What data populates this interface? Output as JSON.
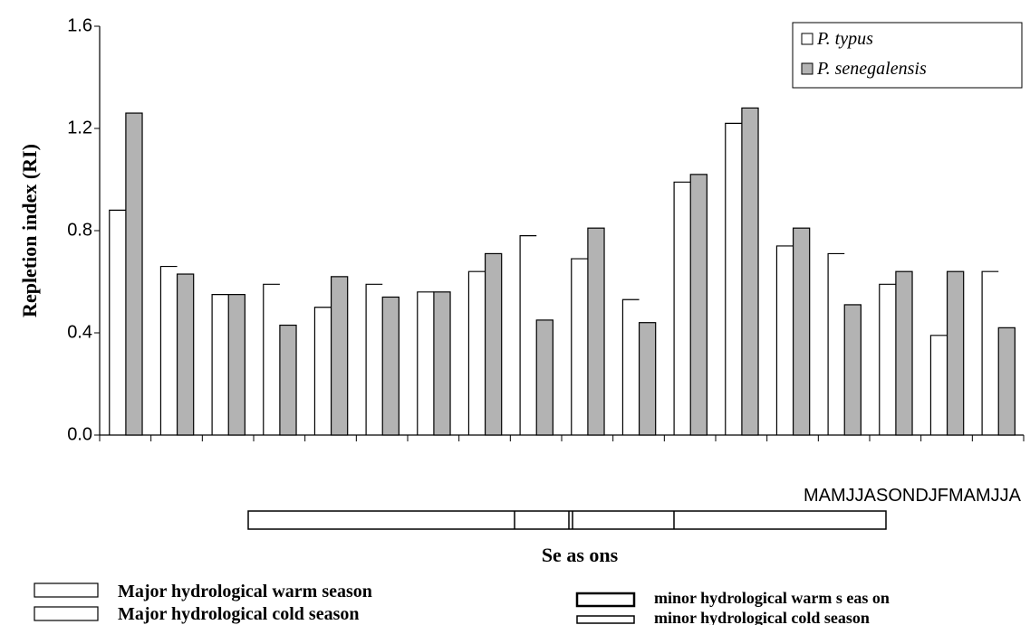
{
  "chart_data": {
    "type": "bar",
    "ylabel": "Repletion index (RI)",
    "xlabel": "Se as ons",
    "x_annotation": "MAMJJASONDJFMAMJJA",
    "categories": [
      null,
      null,
      null,
      null,
      null,
      null,
      null,
      null,
      null,
      null,
      null,
      null,
      null,
      null,
      null,
      null,
      null,
      null
    ],
    "series": [
      {
        "name": "P. typus",
        "color": "#ffffff",
        "values": [
          0.88,
          0.66,
          0.55,
          0.59,
          0.5,
          0.59,
          0.56,
          0.64,
          0.78,
          0.69,
          0.53,
          0.99,
          1.22,
          0.74,
          0.71,
          0.59,
          0.39,
          0.64
        ]
      },
      {
        "name": "P. senegalensis",
        "color": "#b3b3b3",
        "values": [
          1.26,
          0.63,
          0.55,
          0.43,
          0.62,
          0.54,
          0.56,
          0.71,
          0.45,
          0.81,
          0.44,
          1.02,
          1.28,
          0.81,
          0.51,
          0.64,
          0.64,
          0.42
        ]
      }
    ],
    "ylim": [
      0,
      1.6
    ],
    "yticks": [
      {
        "value": 0,
        "label": "0.0"
      },
      0.4,
      0.8,
      1.2,
      1.6
    ],
    "legend": "upper right",
    "season_legend": [
      "Major hydrological warm season",
      "Major hydrological cold season",
      "minor hydrological warm s eas on",
      "minor hydrological cold season"
    ]
  }
}
